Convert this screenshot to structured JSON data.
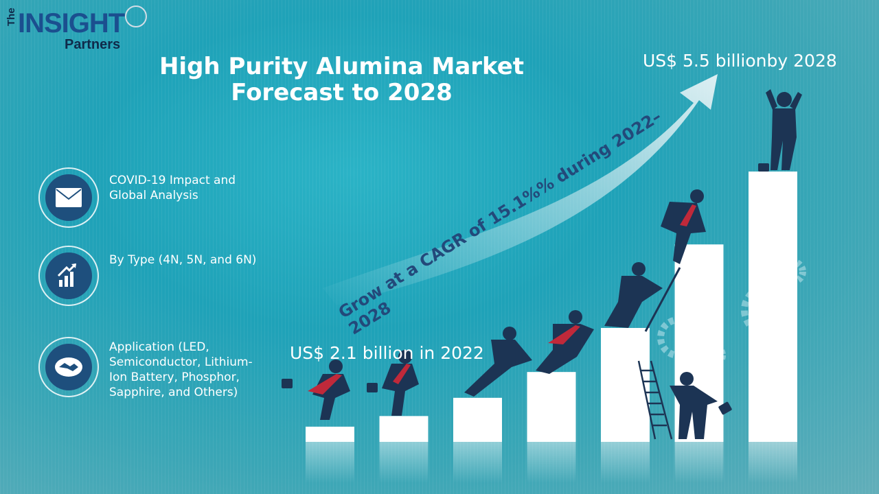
{
  "logo": {
    "the": "The",
    "brand": "INSIGHT",
    "sub": "Partners"
  },
  "title": "High Purity Alumina Market Forecast to 2028",
  "value_top": "US$ 5.5 billionby 2028",
  "value_2022": "US$ 2.1 billion in 2022",
  "cagr_text": "Grow at a CAGR of 15.1%% during 2022–2028",
  "features": [
    {
      "icon": "envelope-icon",
      "label": "COVID-19 Impact and Global Analysis"
    },
    {
      "icon": "growth-chart-icon",
      "label": "By Type (4N, 5N, and 6N)"
    },
    {
      "icon": "handshake-icon",
      "label": "Application (LED, Semiconductor, Lithium-Ion Battery, Phosphor, Sapphire, and Others)"
    }
  ],
  "chart_data": {
    "type": "bar",
    "categories": [
      "",
      "",
      "",
      "",
      "",
      "",
      ""
    ],
    "values": [
      1,
      1.7,
      2.9,
      4.6,
      7.5,
      13,
      17.8
    ],
    "title": "",
    "xlabel": "",
    "ylabel": ""
  },
  "colors": {
    "bar": "#ffffff",
    "figure": "#1c3454",
    "tie": "#c0293a",
    "arrow": "#e6f3f6"
  }
}
